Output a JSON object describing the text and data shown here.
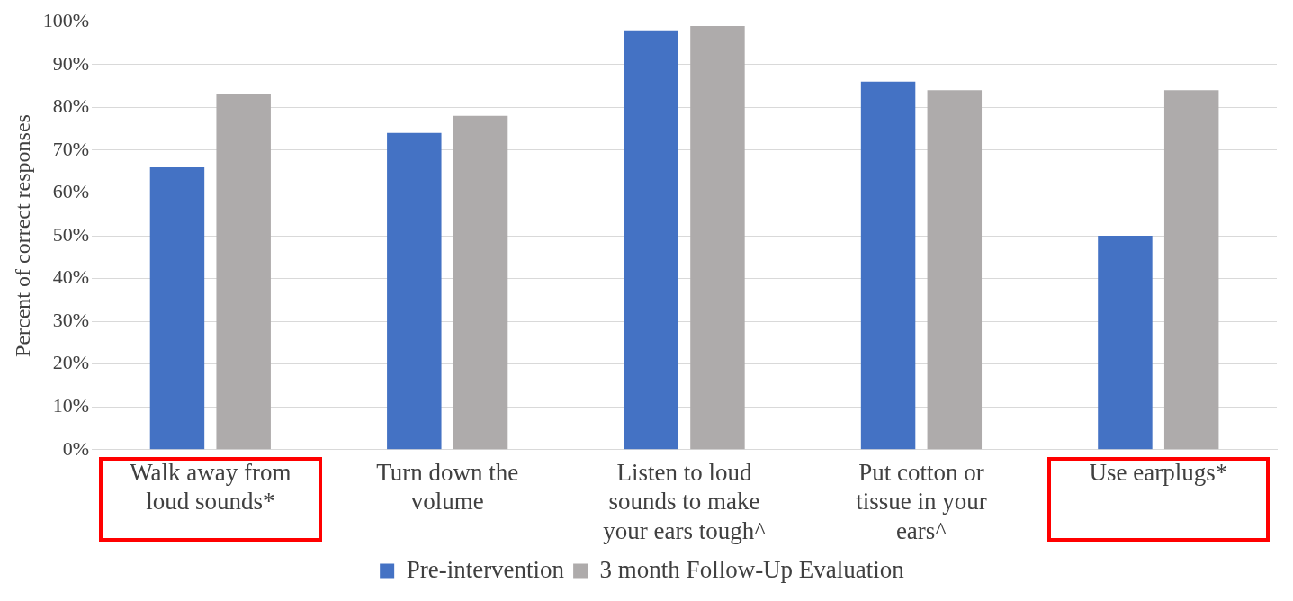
{
  "chart_data": {
    "type": "bar",
    "ylabel": "Percent of correct responses",
    "categories": [
      "Walk away from loud sounds*",
      "Turn down the volume",
      "Listen to loud sounds to make your ears tough^",
      "Put cotton or tissue in your ears^",
      "Use earplugs*"
    ],
    "series": [
      {
        "name": "Pre-intervention",
        "color": "#4472c4",
        "values": [
          66,
          74,
          98,
          86,
          50
        ]
      },
      {
        "name": "3 month Follow-Up Evaluation",
        "color": "#aeabab",
        "values": [
          83,
          78,
          99,
          84,
          84
        ]
      }
    ],
    "ylim": [
      0,
      100
    ],
    "yticks": [
      {
        "value": 0,
        "label": "0%"
      },
      {
        "value": 10,
        "label": "10%"
      },
      {
        "value": 20,
        "label": "20%"
      },
      {
        "value": 30,
        "label": "30%"
      },
      {
        "value": 40,
        "label": "40%"
      },
      {
        "value": 50,
        "label": "50%"
      },
      {
        "value": 60,
        "label": "60%"
      },
      {
        "value": 70,
        "label": "70%"
      },
      {
        "value": 80,
        "label": "80%"
      },
      {
        "value": 90,
        "label": "90%"
      },
      {
        "value": 100,
        "label": "100%"
      }
    ],
    "grid": "y",
    "legend": "bottom"
  }
}
